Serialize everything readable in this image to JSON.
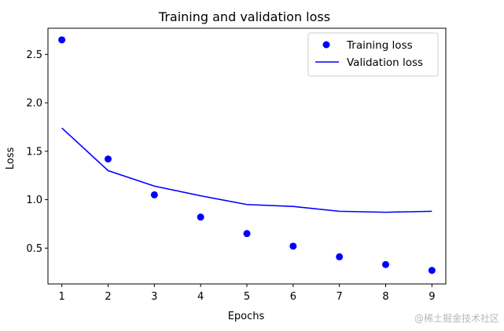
{
  "chart_data": {
    "type": "scatter",
    "title": "Training and validation loss",
    "xlabel": "Epochs",
    "ylabel": "Loss",
    "x": [
      1,
      2,
      3,
      4,
      5,
      6,
      7,
      8,
      9
    ],
    "xlim": [
      0.7,
      9.3
    ],
    "ylim": [
      0.13,
      2.77
    ],
    "xticks": [
      1,
      2,
      3,
      4,
      5,
      6,
      7,
      8,
      9
    ],
    "xtick_labels": [
      "1",
      "2",
      "3",
      "4",
      "5",
      "6",
      "7",
      "8",
      "9"
    ],
    "yticks": [
      0.5,
      1.0,
      1.5,
      2.0,
      2.5
    ],
    "ytick_labels": [
      "0.5",
      "1.0",
      "1.5",
      "2.0",
      "2.5"
    ],
    "grid": false,
    "legend_position": "top-right",
    "series": [
      {
        "name": "Training loss",
        "style": "points",
        "color": "#0000ff",
        "values": [
          2.65,
          1.42,
          1.05,
          0.82,
          0.65,
          0.52,
          0.41,
          0.33,
          0.27
        ]
      },
      {
        "name": "Validation loss",
        "style": "line",
        "color": "#0000ff",
        "values": [
          1.74,
          1.3,
          1.14,
          1.04,
          0.95,
          0.93,
          0.88,
          0.87,
          0.88
        ]
      }
    ]
  },
  "watermark": "@稀土掘金技术社区"
}
